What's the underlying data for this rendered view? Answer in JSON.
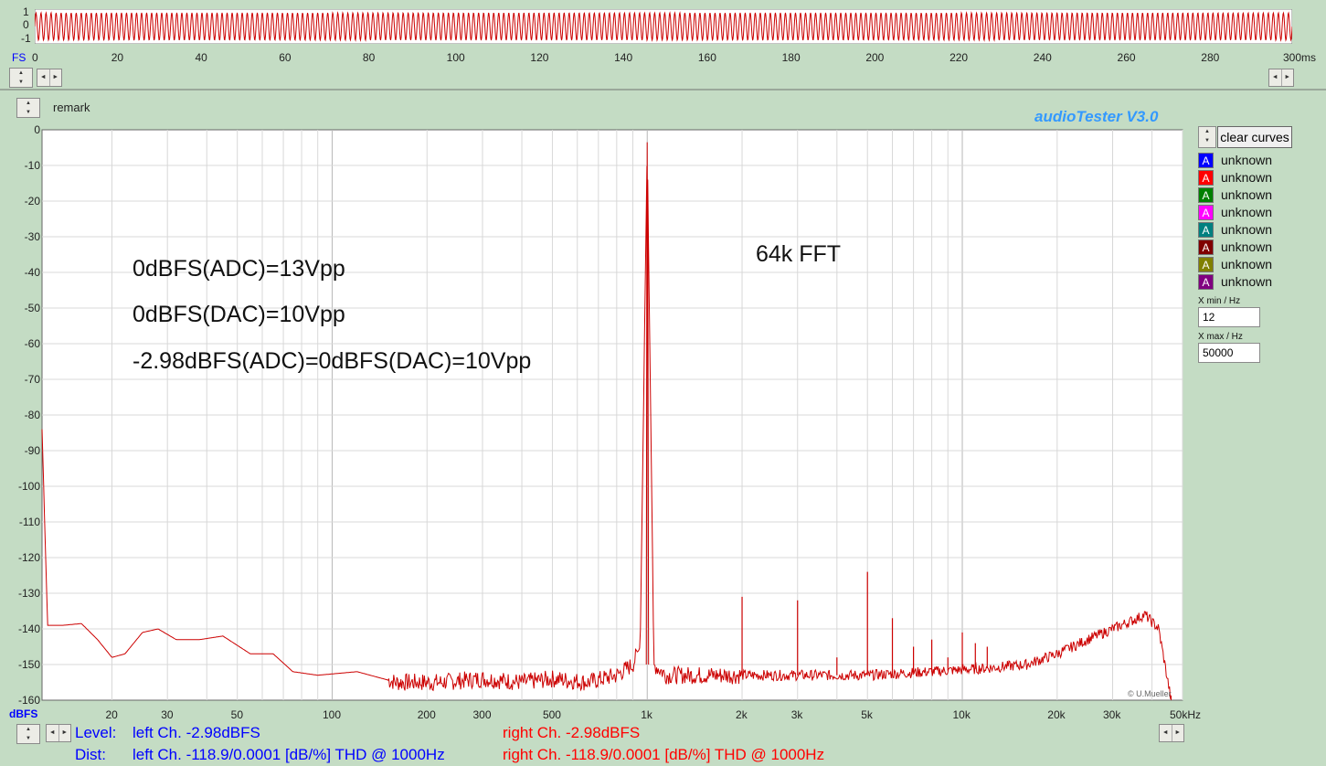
{
  "waveform": {
    "y_labels": [
      "1",
      "0",
      "-1"
    ],
    "fs_label": "FS",
    "x_ticks": [
      "0",
      "20",
      "40",
      "60",
      "80",
      "100",
      "120",
      "140",
      "160",
      "180",
      "200",
      "220",
      "240",
      "260",
      "280",
      "300ms"
    ],
    "color": "#cc0000"
  },
  "remark_label": "remark",
  "app_title": "audioTester  V3.0",
  "clear_button": "clear curves",
  "legend": [
    {
      "icon": "A",
      "label": "unknown",
      "color": "#0000ff"
    },
    {
      "icon": "A",
      "label": "unknown",
      "color": "#ff0000"
    },
    {
      "icon": "A",
      "label": "unknown",
      "color": "#008000"
    },
    {
      "icon": "A",
      "label": "unknown",
      "color": "#ff00ff"
    },
    {
      "icon": "A",
      "label": "unknown",
      "color": "#008080"
    },
    {
      "icon": "A",
      "label": "unknown",
      "color": "#800000"
    },
    {
      "icon": "A",
      "label": "unknown",
      "color": "#808000"
    },
    {
      "icon": "A",
      "label": "unknown",
      "color": "#800080"
    }
  ],
  "xmin": {
    "label": "X min / Hz",
    "value": "12"
  },
  "xmax": {
    "label": "X max / Hz",
    "value": "50000"
  },
  "annotations": {
    "line1": "0dBFS(ADC)=13Vpp",
    "line2": "0dBFS(DAC)=10Vpp",
    "line3": "-2.98dBFS(ADC)=0dBFS(DAC)=10Vpp",
    "fft": "64k FFT",
    "copyright": "© U.Mueller"
  },
  "status": {
    "level_label": "Level:",
    "dist_label": "Dist:",
    "left_level": "left Ch. -2.98dBFS",
    "right_level": "right Ch. -2.98dBFS",
    "left_dist": "left Ch. -118.9/0.0001 [dB/%] THD @ 1000Hz",
    "right_dist": "right Ch. -118.9/0.0001 [dB/%] THD @ 1000Hz"
  },
  "chart_data": {
    "type": "line",
    "xscale": "log",
    "xlim": [
      12,
      50000
    ],
    "ylim": [
      -160,
      0
    ],
    "ylabel": "dBFS",
    "xunit": "kHz",
    "y_ticks": [
      "0",
      "-10",
      "-20",
      "-30",
      "-40",
      "-50",
      "-60",
      "-70",
      "-80",
      "-90",
      "-100",
      "-110",
      "-120",
      "-130",
      "-140",
      "-150",
      "-160"
    ],
    "x_ticks": [
      {
        "value": 20,
        "label": "20"
      },
      {
        "value": 30,
        "label": "30"
      },
      {
        "value": 50,
        "label": "50"
      },
      {
        "value": 100,
        "label": "100"
      },
      {
        "value": 200,
        "label": "200"
      },
      {
        "value": 300,
        "label": "300"
      },
      {
        "value": 500,
        "label": "500"
      },
      {
        "value": 1000,
        "label": "1k"
      },
      {
        "value": 2000,
        "label": "2k"
      },
      {
        "value": 3000,
        "label": "3k"
      },
      {
        "value": 5000,
        "label": "5k"
      },
      {
        "value": 10000,
        "label": "10k"
      },
      {
        "value": 20000,
        "label": "20k"
      },
      {
        "value": 30000,
        "label": "30k"
      },
      {
        "value": 50000,
        "label": "50kHz"
      }
    ],
    "series": [
      {
        "color": "#cc0000",
        "floor": [
          [
            12,
            -84
          ],
          [
            12.5,
            -139
          ],
          [
            14,
            -139
          ],
          [
            16,
            -138.5
          ],
          [
            18,
            -143
          ],
          [
            20,
            -148
          ],
          [
            22,
            -147
          ],
          [
            25,
            -141
          ],
          [
            28,
            -140
          ],
          [
            32,
            -143
          ],
          [
            38,
            -143
          ],
          [
            45,
            -142
          ],
          [
            55,
            -147
          ],
          [
            65,
            -147
          ],
          [
            75,
            -152
          ],
          [
            90,
            -153
          ],
          [
            120,
            -152
          ],
          [
            160,
            -155
          ],
          [
            220,
            -155
          ],
          [
            300,
            -154
          ],
          [
            400,
            -155
          ],
          [
            500,
            -154
          ],
          [
            650,
            -155
          ],
          [
            800,
            -153
          ],
          [
            900,
            -150
          ],
          [
            950,
            -145
          ],
          [
            1000,
            -3.5
          ],
          [
            1050,
            -150
          ],
          [
            1150,
            -153
          ],
          [
            1500,
            -153
          ],
          [
            2000,
            -153
          ],
          [
            3000,
            -153
          ],
          [
            5000,
            -153
          ],
          [
            8000,
            -152
          ],
          [
            12000,
            -151
          ],
          [
            16000,
            -150
          ],
          [
            20000,
            -147
          ],
          [
            25000,
            -143
          ],
          [
            30000,
            -140
          ],
          [
            35000,
            -137.5
          ],
          [
            38000,
            -136
          ],
          [
            42000,
            -140
          ],
          [
            46000,
            -160
          ]
        ],
        "spikes": [
          [
            2000,
            -131
          ],
          [
            3000,
            -132
          ],
          [
            4000,
            -148
          ],
          [
            5000,
            -124
          ],
          [
            6000,
            -137
          ],
          [
            7000,
            -145
          ],
          [
            8000,
            -143
          ],
          [
            9000,
            -148
          ],
          [
            10000,
            -141
          ],
          [
            11000,
            -144
          ],
          [
            12000,
            -145
          ]
        ]
      }
    ]
  }
}
